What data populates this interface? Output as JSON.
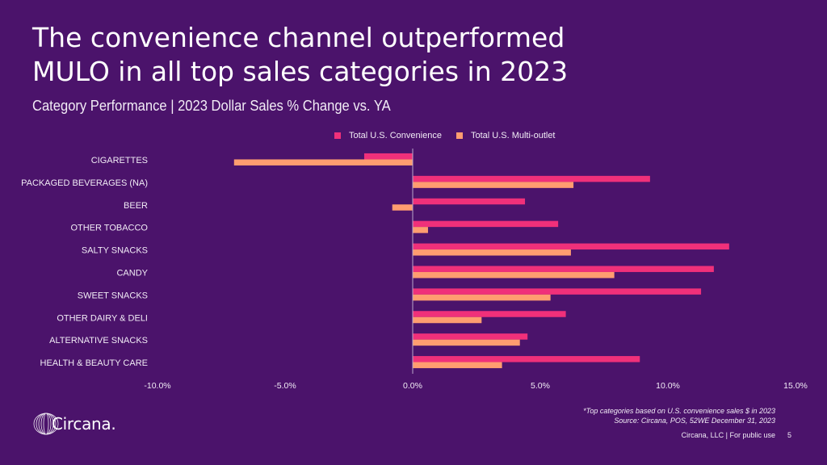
{
  "header": {
    "title_line1": "The convenience channel outperformed",
    "title_line2": "MULO in all top sales categories in 2023",
    "subtitle": "Category Performance | 2023 Dollar Sales % Change vs. YA"
  },
  "colors": {
    "background": "#4b136b",
    "convenience": "#f0307a",
    "multi_outlet": "#ff9d70",
    "axis": "#b9a6c9"
  },
  "chart_data": {
    "type": "bar",
    "orientation": "horizontal",
    "title": "Category Performance | 2023 Dollar Sales % Change vs. YA",
    "xlabel": "",
    "ylabel": "",
    "xlim": [
      -10,
      15
    ],
    "x_ticks": [
      -10,
      -5,
      0,
      5,
      10,
      15
    ],
    "x_tick_labels": [
      "-10.0%",
      "-5.0%",
      "0.0%",
      "5.0%",
      "10.0%",
      "15.0%"
    ],
    "grid": false,
    "legend_position": "top-center",
    "categories": [
      "CIGARETTES",
      "PACKAGED BEVERAGES (NA)",
      "BEER",
      "OTHER TOBACCO",
      "SALTY SNACKS",
      "CANDY",
      "SWEET SNACKS",
      "OTHER DAIRY & DELI",
      "ALTERNATIVE SNACKS",
      "HEALTH & BEAUTY CARE"
    ],
    "series": [
      {
        "name": "Total U.S. Convenience",
        "color": "#f0307a",
        "values": [
          -1.9,
          9.3,
          4.4,
          5.7,
          12.4,
          11.8,
          11.3,
          6.0,
          4.5,
          8.9
        ]
      },
      {
        "name": "Total U.S. Multi-outlet",
        "color": "#ff9d70",
        "values": [
          -7.0,
          6.3,
          -0.8,
          0.6,
          6.2,
          7.9,
          5.4,
          2.7,
          4.2,
          3.5
        ]
      }
    ]
  },
  "footnotes": {
    "line1": "*Top categories based on U.S. convenience sales $ in 2023",
    "line2": "Source: Circana, POS, 52WE December 31, 2023"
  },
  "footer": {
    "company": "Circana, LLC |  For public use",
    "page_number": "5"
  },
  "logo": {
    "text": "Circana."
  }
}
